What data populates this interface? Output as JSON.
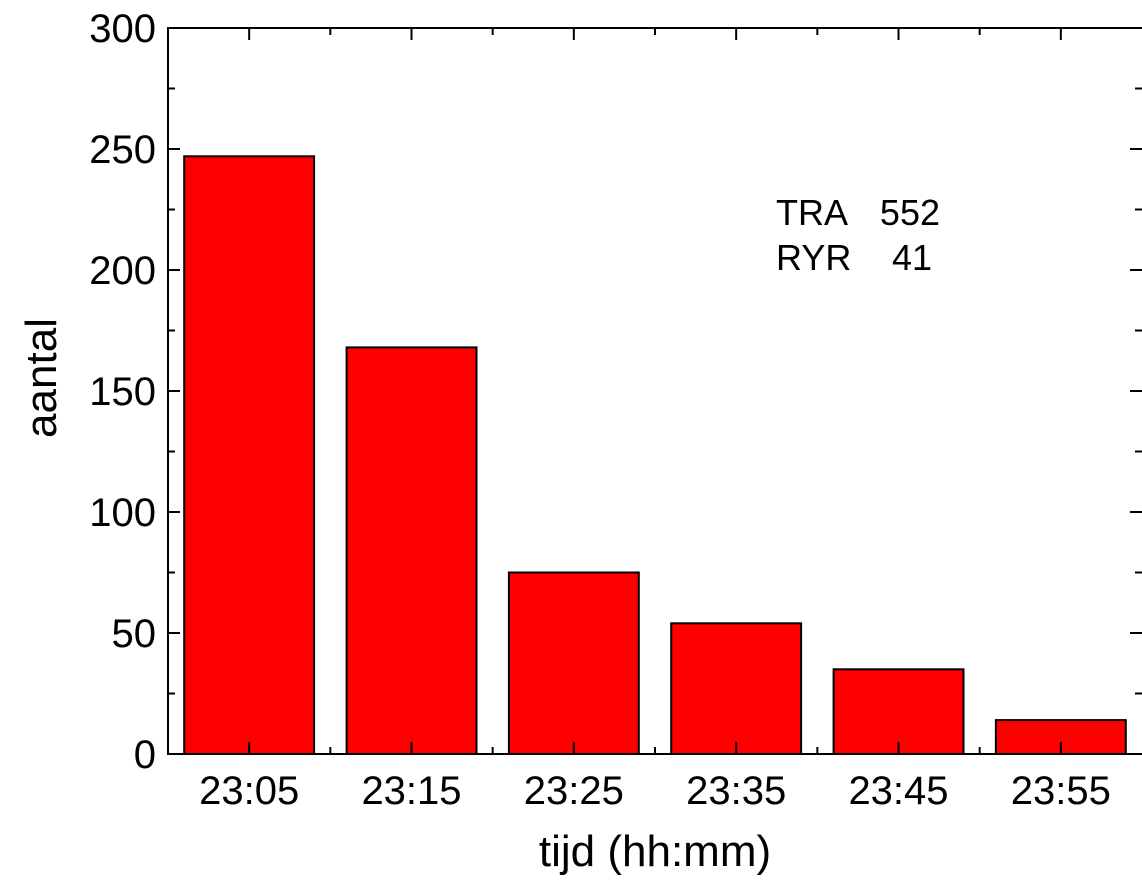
{
  "chart_data": {
    "type": "bar",
    "title": "",
    "xlabel": "tijd (hh:mm)",
    "ylabel": "aantal",
    "categories": [
      "23:05",
      "23:15",
      "23:25",
      "23:35",
      "23:45",
      "23:55"
    ],
    "values": [
      247,
      168,
      75,
      54,
      35,
      14
    ],
    "ylim": [
      0,
      300
    ],
    "yticks": [
      0,
      50,
      100,
      150,
      200,
      250,
      300
    ],
    "bar_color": "#ff0000",
    "grid": false,
    "legend": "none",
    "annotations": [
      {
        "label": "TRA",
        "value": "552"
      },
      {
        "label": "RYR",
        "value": "41"
      }
    ]
  }
}
